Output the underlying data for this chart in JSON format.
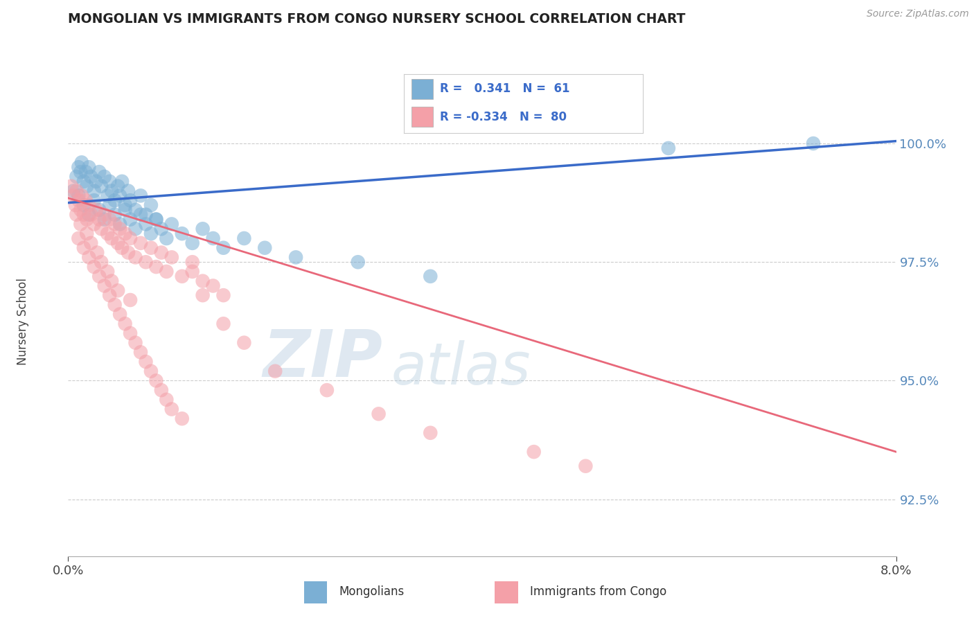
{
  "title": "MONGOLIAN VS IMMIGRANTS FROM CONGO NURSERY SCHOOL CORRELATION CHART",
  "source": "Source: ZipAtlas.com",
  "ylabel": "Nursery School",
  "y_ticks": [
    92.5,
    95.0,
    97.5,
    100.0
  ],
  "y_tick_labels": [
    "92.5%",
    "95.0%",
    "97.5%",
    "100.0%"
  ],
  "x_range": [
    0.0,
    8.0
  ],
  "y_range": [
    91.3,
    101.2
  ],
  "mongolian_R": 0.341,
  "mongolian_N": 61,
  "congo_R": -0.334,
  "congo_N": 80,
  "blue_color": "#7BAFD4",
  "pink_color": "#F4A0A8",
  "blue_line_color": "#3A6BC9",
  "pink_line_color": "#E8687A",
  "legend_label_mongolian": "Mongolians",
  "legend_label_congo": "Immigrants from Congo",
  "watermark_zip": "ZIP",
  "watermark_atlas": "atlas",
  "background_color": "#FFFFFF",
  "mongolian_x": [
    0.05,
    0.08,
    0.1,
    0.12,
    0.13,
    0.15,
    0.17,
    0.18,
    0.2,
    0.22,
    0.25,
    0.27,
    0.3,
    0.32,
    0.35,
    0.38,
    0.4,
    0.42,
    0.45,
    0.48,
    0.5,
    0.52,
    0.55,
    0.58,
    0.6,
    0.65,
    0.7,
    0.75,
    0.8,
    0.85,
    0.1,
    0.15,
    0.2,
    0.25,
    0.3,
    0.35,
    0.4,
    0.45,
    0.5,
    0.55,
    0.6,
    0.65,
    0.7,
    0.75,
    0.8,
    0.85,
    0.9,
    0.95,
    1.0,
    1.1,
    1.2,
    1.3,
    1.4,
    1.5,
    1.7,
    1.9,
    2.2,
    2.8,
    3.5,
    5.8,
    7.2
  ],
  "mongolian_y": [
    99.0,
    99.3,
    99.5,
    99.4,
    99.6,
    99.2,
    99.4,
    99.1,
    99.5,
    99.3,
    99.0,
    99.2,
    99.4,
    99.1,
    99.3,
    98.9,
    99.2,
    99.0,
    98.8,
    99.1,
    98.9,
    99.2,
    98.7,
    99.0,
    98.8,
    98.6,
    98.9,
    98.5,
    98.7,
    98.4,
    98.9,
    98.7,
    98.5,
    98.8,
    98.6,
    98.4,
    98.7,
    98.5,
    98.3,
    98.6,
    98.4,
    98.2,
    98.5,
    98.3,
    98.1,
    98.4,
    98.2,
    98.0,
    98.3,
    98.1,
    97.9,
    98.2,
    98.0,
    97.8,
    98.0,
    97.8,
    97.6,
    97.5,
    97.2,
    99.9,
    100.0
  ],
  "congo_x": [
    0.03,
    0.05,
    0.07,
    0.08,
    0.1,
    0.12,
    0.13,
    0.15,
    0.17,
    0.18,
    0.2,
    0.22,
    0.25,
    0.27,
    0.3,
    0.32,
    0.35,
    0.38,
    0.4,
    0.42,
    0.45,
    0.48,
    0.5,
    0.52,
    0.55,
    0.58,
    0.6,
    0.65,
    0.7,
    0.75,
    0.8,
    0.85,
    0.9,
    0.95,
    1.0,
    1.1,
    1.2,
    1.3,
    1.4,
    1.5,
    0.1,
    0.15,
    0.2,
    0.25,
    0.3,
    0.35,
    0.4,
    0.45,
    0.5,
    0.55,
    0.6,
    0.65,
    0.7,
    0.75,
    0.8,
    0.85,
    0.9,
    0.95,
    1.0,
    1.1,
    1.2,
    1.3,
    1.5,
    1.7,
    2.0,
    2.5,
    3.0,
    3.5,
    4.5,
    5.0,
    0.08,
    0.12,
    0.18,
    0.22,
    0.28,
    0.32,
    0.38,
    0.42,
    0.48,
    0.6
  ],
  "congo_y": [
    99.1,
    98.9,
    98.7,
    99.0,
    98.8,
    98.6,
    98.9,
    98.5,
    98.8,
    98.4,
    98.7,
    98.5,
    98.3,
    98.6,
    98.4,
    98.2,
    98.5,
    98.1,
    98.4,
    98.0,
    98.3,
    97.9,
    98.2,
    97.8,
    98.1,
    97.7,
    98.0,
    97.6,
    97.9,
    97.5,
    97.8,
    97.4,
    97.7,
    97.3,
    97.6,
    97.2,
    97.5,
    97.1,
    97.0,
    96.8,
    98.0,
    97.8,
    97.6,
    97.4,
    97.2,
    97.0,
    96.8,
    96.6,
    96.4,
    96.2,
    96.0,
    95.8,
    95.6,
    95.4,
    95.2,
    95.0,
    94.8,
    94.6,
    94.4,
    94.2,
    97.3,
    96.8,
    96.2,
    95.8,
    95.2,
    94.8,
    94.3,
    93.9,
    93.5,
    93.2,
    98.5,
    98.3,
    98.1,
    97.9,
    97.7,
    97.5,
    97.3,
    97.1,
    96.9,
    96.7
  ]
}
